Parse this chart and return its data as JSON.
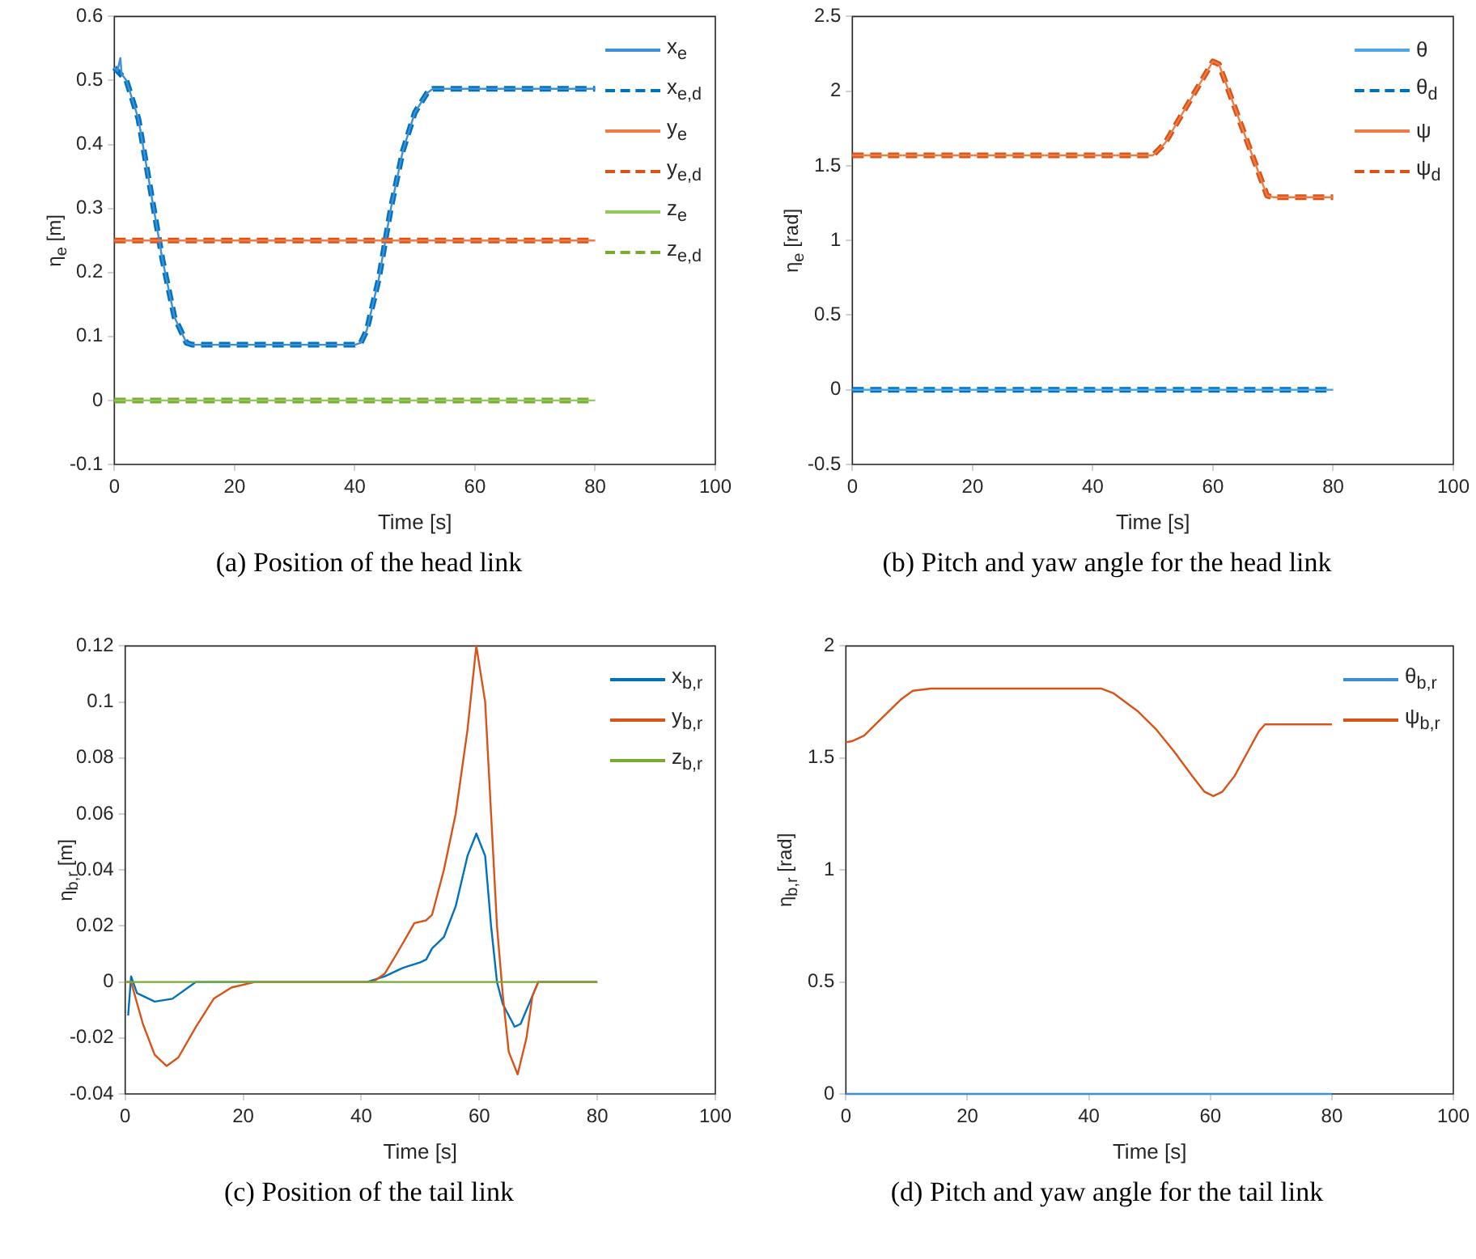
{
  "chart_data": [
    {
      "type": "line",
      "title": "(a) Position of the head link",
      "xlabel": "Time [s]",
      "ylabel": "η$_{e}$ [m]",
      "xlim": [
        0,
        100
      ],
      "xticks": [
        0,
        20,
        40,
        60,
        80,
        100
      ],
      "ylim": [
        -0.1,
        0.6
      ],
      "yticks": [
        -0.1,
        0,
        0.1,
        0.2,
        0.3,
        0.4,
        0.5,
        0.6
      ],
      "grid": false,
      "legend": "top right",
      "series": [
        {
          "name": "x$_{e}$",
          "color": "#3d8fd6",
          "line_style": "solid",
          "x": [
            0,
            0.5,
            1,
            1.2,
            2,
            4,
            6,
            8,
            10,
            12,
            13,
            40,
            41,
            42,
            44,
            46,
            48,
            50,
            52,
            53,
            80
          ],
          "values": [
            0.52,
            0.515,
            0.535,
            0.51,
            0.5,
            0.44,
            0.33,
            0.22,
            0.13,
            0.09,
            0.087,
            0.087,
            0.09,
            0.11,
            0.19,
            0.3,
            0.39,
            0.45,
            0.48,
            0.487,
            0.487
          ]
        },
        {
          "name": "x$_{e,d}$",
          "color": "#0072bd",
          "line_style": "dashed",
          "x": [
            0,
            2,
            4,
            6,
            8,
            10,
            12,
            13,
            40,
            41,
            42,
            44,
            46,
            48,
            50,
            52,
            53,
            80
          ],
          "values": [
            0.52,
            0.5,
            0.44,
            0.33,
            0.22,
            0.13,
            0.09,
            0.087,
            0.087,
            0.09,
            0.11,
            0.19,
            0.3,
            0.39,
            0.45,
            0.48,
            0.487,
            0.487
          ]
        },
        {
          "name": "y$_{e}$",
          "color": "#ee7d45",
          "line_style": "solid",
          "x": [
            0,
            80
          ],
          "values": [
            0.25,
            0.25
          ]
        },
        {
          "name": "y$_{e,d}$",
          "color": "#d95319",
          "line_style": "dashed",
          "x": [
            0,
            80
          ],
          "values": [
            0.25,
            0.25
          ]
        },
        {
          "name": "z$_{e}$",
          "color": "#93c95a",
          "line_style": "solid",
          "x": [
            0,
            80
          ],
          "values": [
            0,
            0
          ]
        },
        {
          "name": "z$_{e,d}$",
          "color": "#77ac30",
          "line_style": "dashed",
          "x": [
            0,
            80
          ],
          "values": [
            0,
            0
          ]
        }
      ]
    },
    {
      "type": "line",
      "title": "(b) Pitch and yaw angle for the head link",
      "xlabel": "Time [s]",
      "ylabel": "η$_{e}$ [rad]",
      "xlim": [
        0,
        100
      ],
      "xticks": [
        0,
        20,
        40,
        60,
        80,
        100
      ],
      "ylim": [
        -0.5,
        2.5
      ],
      "yticks": [
        -0.5,
        0,
        0.5,
        1,
        1.5,
        2,
        2.5
      ],
      "grid": false,
      "legend": "top right",
      "series": [
        {
          "name": "θ",
          "color": "#4da6e8",
          "line_style": "solid",
          "x": [
            0,
            80
          ],
          "values": [
            0,
            0
          ]
        },
        {
          "name": "θ$_{d}$",
          "color": "#0072bd",
          "line_style": "dashed",
          "x": [
            0,
            80
          ],
          "values": [
            0,
            0
          ]
        },
        {
          "name": "ψ",
          "color": "#ee7d45",
          "line_style": "solid",
          "x": [
            0,
            50,
            52,
            60,
            61,
            69,
            70,
            80
          ],
          "values": [
            1.57,
            1.57,
            1.65,
            2.2,
            2.18,
            1.3,
            1.29,
            1.29
          ]
        },
        {
          "name": "ψ$_{d}$",
          "color": "#d95319",
          "line_style": "dashed",
          "x": [
            0,
            50,
            52,
            60,
            61,
            69,
            70,
            80
          ],
          "values": [
            1.57,
            1.57,
            1.65,
            2.2,
            2.18,
            1.3,
            1.29,
            1.29
          ]
        }
      ]
    },
    {
      "type": "line",
      "title": "(c) Position of the tail link",
      "xlabel": "Time [s]",
      "ylabel": "η$_{b,r}$ [m]",
      "xlim": [
        0,
        100
      ],
      "xticks": [
        0,
        20,
        40,
        60,
        80,
        100
      ],
      "ylim": [
        -0.04,
        0.12
      ],
      "yticks": [
        -0.04,
        -0.02,
        0,
        0.02,
        0.04,
        0.06,
        0.08,
        0.1,
        0.12
      ],
      "grid": false,
      "legend": "top right",
      "series": [
        {
          "name": "x$_{b,r}$",
          "color": "#0072bd",
          "line_style": "solid",
          "x": [
            0.5,
            1,
            2,
            5,
            8,
            12,
            20,
            41,
            44,
            47,
            50,
            51,
            52,
            54,
            56,
            58,
            59.5,
            61,
            62,
            63,
            64,
            66,
            67,
            69,
            70,
            80
          ],
          "values": [
            -0.012,
            0.002,
            -0.004,
            -0.007,
            -0.006,
            0,
            0,
            0,
            0.002,
            0.005,
            0.007,
            0.008,
            0.012,
            0.016,
            0.027,
            0.045,
            0.053,
            0.045,
            0.02,
            0,
            -0.008,
            -0.016,
            -0.015,
            -0.005,
            0,
            0
          ]
        },
        {
          "name": "y$_{b,r}$",
          "color": "#d95319",
          "line_style": "solid",
          "x": [
            0,
            1,
            3,
            5,
            7,
            9,
            12,
            15,
            18,
            22,
            42,
            44,
            46,
            49,
            51,
            52,
            54,
            56,
            58,
            59.5,
            61,
            62,
            63,
            64,
            65,
            66.5,
            68,
            69,
            70,
            80
          ],
          "values": [
            0,
            0,
            -0.015,
            -0.026,
            -0.03,
            -0.027,
            -0.016,
            -0.006,
            -0.002,
            0,
            0,
            0.003,
            0.01,
            0.021,
            0.022,
            0.024,
            0.04,
            0.06,
            0.09,
            0.12,
            0.1,
            0.06,
            0.02,
            -0.005,
            -0.025,
            -0.033,
            -0.02,
            -0.005,
            0,
            0
          ]
        },
        {
          "name": "z$_{b,r}$",
          "color": "#77ac30",
          "line_style": "solid",
          "x": [
            0,
            80
          ],
          "values": [
            0,
            0
          ]
        }
      ]
    },
    {
      "type": "line",
      "title": "(d) Pitch and yaw angle for the tail link",
      "xlabel": "Time [s]",
      "ylabel": "η$_{b,r}$ [rad]",
      "xlim": [
        0,
        100
      ],
      "xticks": [
        0,
        20,
        40,
        60,
        80,
        100
      ],
      "ylim": [
        0,
        2
      ],
      "yticks": [
        0,
        0.5,
        1,
        1.5,
        2
      ],
      "grid": false,
      "legend": "top right",
      "series": [
        {
          "name": "θ$_{b,r}$",
          "color": "#3d8fd6",
          "line_style": "solid",
          "x": [
            0,
            80
          ],
          "values": [
            0,
            0
          ]
        },
        {
          "name": "ψ$_{b,r}$",
          "color": "#d95319",
          "line_style": "solid",
          "x": [
            0,
            1,
            3,
            6,
            9,
            11,
            14,
            42,
            44,
            48,
            51,
            54,
            57,
            59,
            60.5,
            62,
            64,
            66,
            68,
            69,
            80
          ],
          "values": [
            1.57,
            1.575,
            1.6,
            1.68,
            1.76,
            1.8,
            1.81,
            1.81,
            1.79,
            1.71,
            1.63,
            1.53,
            1.42,
            1.35,
            1.33,
            1.35,
            1.42,
            1.52,
            1.62,
            1.65,
            1.65
          ]
        }
      ]
    }
  ]
}
